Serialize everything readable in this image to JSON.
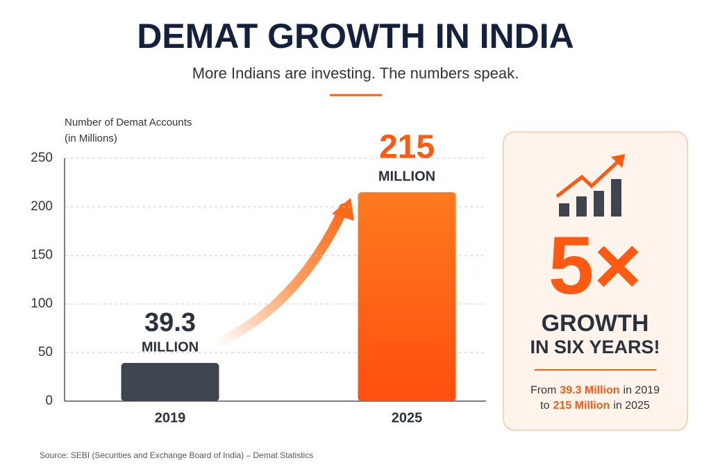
{
  "chart_data": {
    "type": "bar",
    "title": "DEMAT GROWTH IN INDIA",
    "subtitle": "More Indians are investing. The numbers speak.",
    "y_label": [
      "Number of Demat Accounts",
      "(in Millions)"
    ],
    "categories": [
      "2019",
      "2025"
    ],
    "values": [
      39.3,
      215
    ],
    "colors": [
      "#3f454e",
      "#ff5a12"
    ],
    "value_unit": "MILLION",
    "ylim": [
      0,
      250
    ],
    "yticks": [
      0,
      50,
      100,
      150,
      200,
      250
    ],
    "grid": true,
    "source": "Source: SEBI (Securities and Exchange Board of India) – Demat Statistics"
  },
  "panel": {
    "multiplier": "5×",
    "headline": [
      "GROWTH",
      "IN SIX YEARS!"
    ],
    "note": [
      [
        "From",
        "39.3 Million",
        "in 2019"
      ],
      [
        "to",
        "215 Million",
        "in 2025"
      ]
    ]
  }
}
